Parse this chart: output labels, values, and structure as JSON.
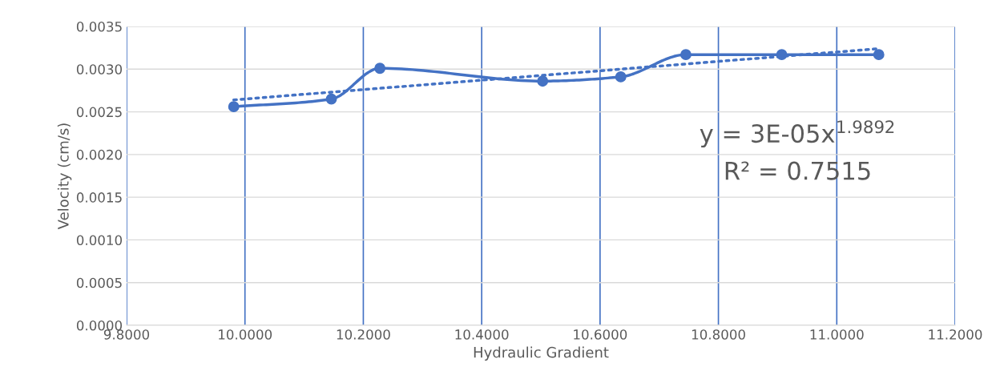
{
  "chart_data": {
    "type": "line",
    "xlabel": "Hydraulic Gradient",
    "ylabel": "Velocity (cm/s)",
    "xlim": [
      9.8,
      11.2
    ],
    "xticks": [
      {
        "value": 9.8,
        "label": "9.8000"
      },
      {
        "value": 10.0,
        "label": "10.0000"
      },
      {
        "value": 10.2,
        "label": "10.2000"
      },
      {
        "value": 10.4,
        "label": "10.4000"
      },
      {
        "value": 10.6,
        "label": "10.6000"
      },
      {
        "value": 10.8,
        "label": "10.8000"
      },
      {
        "value": 11.0,
        "label": "11.0000"
      },
      {
        "value": 11.2,
        "label": "11.2000"
      }
    ],
    "ylim": [
      0,
      0.0035
    ],
    "yticks": [
      {
        "value": 0,
        "label": "0.0000"
      },
      {
        "value": 0.0005,
        "label": "0.0005"
      },
      {
        "value": 0.001,
        "label": "0.0010"
      },
      {
        "value": 0.0015,
        "label": "0.0015"
      },
      {
        "value": 0.002,
        "label": "0.0020"
      },
      {
        "value": 0.0025,
        "label": "0.0025"
      },
      {
        "value": 0.003,
        "label": "0.0030"
      },
      {
        "value": 0.0035,
        "label": "0.0035"
      }
    ],
    "grid": true,
    "legend": false,
    "series": [
      {
        "color": "#4472c4",
        "marker": "circle",
        "line_style": "solid",
        "x": [
          9.981,
          10.146,
          10.228,
          10.503,
          10.635,
          10.745,
          10.907,
          11.071
        ],
        "values": [
          0.00256,
          0.00265,
          0.00301,
          0.00286,
          0.00291,
          0.00317,
          0.00317,
          0.00317
        ]
      },
      {
        "type": "line",
        "color": "#4472c4",
        "marker": "none",
        "line_style": "dotted",
        "x": [
          9.981,
          11.071
        ],
        "values": [
          0.00264,
          0.00324
        ]
      }
    ],
    "annotations": [
      "y = 3E-05x$^{1.9892}$",
      "R² = 0.7515"
    ]
  }
}
